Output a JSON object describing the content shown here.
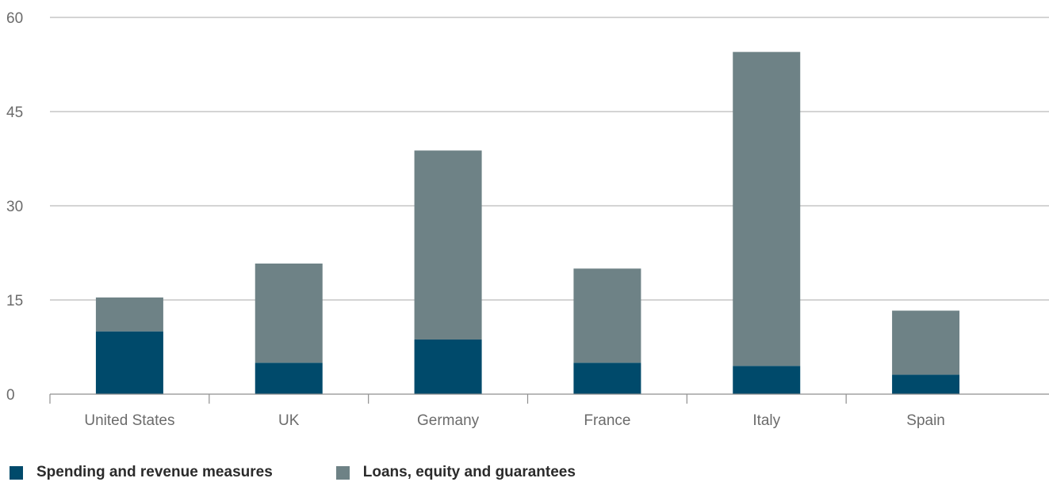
{
  "chart_data": {
    "type": "bar",
    "stacked": true,
    "categories": [
      "United States",
      "UK",
      "Germany",
      "France",
      "Italy",
      "Spain"
    ],
    "series": [
      {
        "name": "Spending and revenue measures",
        "values": [
          10,
          5,
          8.7,
          5,
          4.5,
          3.1
        ],
        "color": "#004a6b"
      },
      {
        "name": "Loans, equity and guarantees",
        "values": [
          5.4,
          15.8,
          30.1,
          15,
          50,
          10.2
        ],
        "color": "#6e8286"
      }
    ],
    "yticks": [
      0,
      15,
      30,
      45,
      60
    ],
    "ylim": [
      0,
      60
    ],
    "grid": true,
    "legend_position": "bottom-left",
    "title": "",
    "xlabel": "",
    "ylabel": ""
  }
}
